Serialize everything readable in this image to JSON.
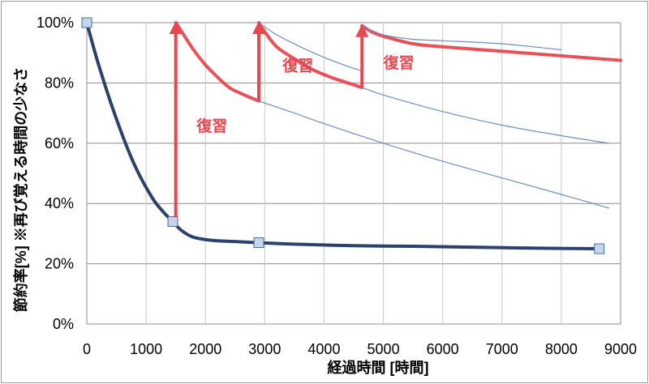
{
  "chart_data": {
    "type": "line",
    "xlabel": "経過時間 [時間]",
    "ylabel": "節約率[%] ※再び覚える時間の少なさ",
    "xlim": [
      0,
      9000
    ],
    "ylim": [
      0,
      100
    ],
    "x_ticks": [
      "0",
      "1000",
      "2000",
      "3000",
      "4000",
      "5000",
      "6000",
      "7000",
      "8000",
      "9000"
    ],
    "y_ticks": [
      "0%",
      "20%",
      "40%",
      "60%",
      "80%",
      "100%"
    ],
    "grid": true,
    "series": [
      {
        "color": "#1f3864",
        "style": "thick",
        "points": [
          [
            0,
            100
          ],
          [
            200,
            86
          ],
          [
            500,
            68
          ],
          [
            800,
            53
          ],
          [
            1100,
            42
          ],
          [
            1300,
            37
          ],
          [
            1450,
            34
          ],
          [
            1600,
            31
          ],
          [
            1800,
            28.8
          ],
          [
            2100,
            27.8
          ],
          [
            2500,
            27.4
          ],
          [
            2900,
            27
          ],
          [
            3500,
            26.5
          ],
          [
            4500,
            26
          ],
          [
            5500,
            25.8
          ],
          [
            6500,
            25.5
          ],
          [
            7500,
            25.2
          ],
          [
            8640,
            25
          ]
        ]
      },
      {
        "color": "#e8474f",
        "style": "thick",
        "points": [
          [
            1500,
            34
          ],
          [
            1500,
            100
          ],
          [
            1600,
            97
          ],
          [
            1800,
            91
          ],
          [
            2000,
            86
          ],
          [
            2200,
            82
          ],
          [
            2400,
            78.5
          ],
          [
            2600,
            76.5
          ],
          [
            2900,
            74
          ],
          [
            2900,
            100
          ],
          [
            3000,
            97
          ],
          [
            3200,
            92
          ],
          [
            3500,
            88
          ],
          [
            3800,
            84.5
          ],
          [
            4100,
            82
          ],
          [
            4400,
            80
          ],
          [
            4640,
            78.5
          ],
          [
            4640,
            99
          ],
          [
            4800,
            97
          ],
          [
            5000,
            95.5
          ],
          [
            5500,
            93
          ],
          [
            6000,
            92
          ],
          [
            7000,
            90.5
          ],
          [
            8000,
            89
          ],
          [
            9000,
            87.5
          ]
        ]
      },
      {
        "color": "#6a8fbf",
        "style": "thin",
        "points": [
          [
            2900,
            74
          ],
          [
            3500,
            70
          ],
          [
            4000,
            66.5
          ],
          [
            5000,
            60
          ],
          [
            6000,
            54
          ],
          [
            7000,
            48.5
          ],
          [
            8000,
            43
          ],
          [
            8800,
            38.5
          ]
        ]
      },
      {
        "color": "#6a8fbf",
        "style": "thin",
        "points": [
          [
            4640,
            78.5
          ],
          [
            5000,
            76
          ],
          [
            6000,
            70.5
          ],
          [
            7000,
            66
          ],
          [
            8000,
            62.5
          ],
          [
            8800,
            60
          ]
        ]
      },
      {
        "color": "#6a8fbf",
        "style": "thin",
        "points": [
          [
            2900,
            100
          ],
          [
            3200,
            96
          ],
          [
            3600,
            92
          ],
          [
            4000,
            88.5
          ],
          [
            4400,
            85.5
          ],
          [
            4640,
            84
          ]
        ]
      },
      {
        "color": "#6a8fbf",
        "style": "thin",
        "points": [
          [
            4640,
            99
          ],
          [
            5000,
            96
          ],
          [
            5500,
            94.5
          ],
          [
            6000,
            94
          ],
          [
            7000,
            93
          ],
          [
            8000,
            91
          ]
        ]
      }
    ],
    "markers": [
      [
        0,
        100
      ],
      [
        1450,
        34
      ],
      [
        2900,
        27
      ],
      [
        8640,
        25
      ]
    ],
    "arrows": [
      {
        "x": 1500,
        "from": 34,
        "to": 100
      },
      {
        "x": 2900,
        "from": 74,
        "to": 100
      },
      {
        "x": 4640,
        "from": 78.5,
        "to": 99
      }
    ],
    "annotations": [
      {
        "text": "復習",
        "x": 1850,
        "y": 64
      },
      {
        "text": "復習",
        "x": 3300,
        "y": 84
      },
      {
        "text": "復習",
        "x": 5000,
        "y": 85
      }
    ]
  }
}
